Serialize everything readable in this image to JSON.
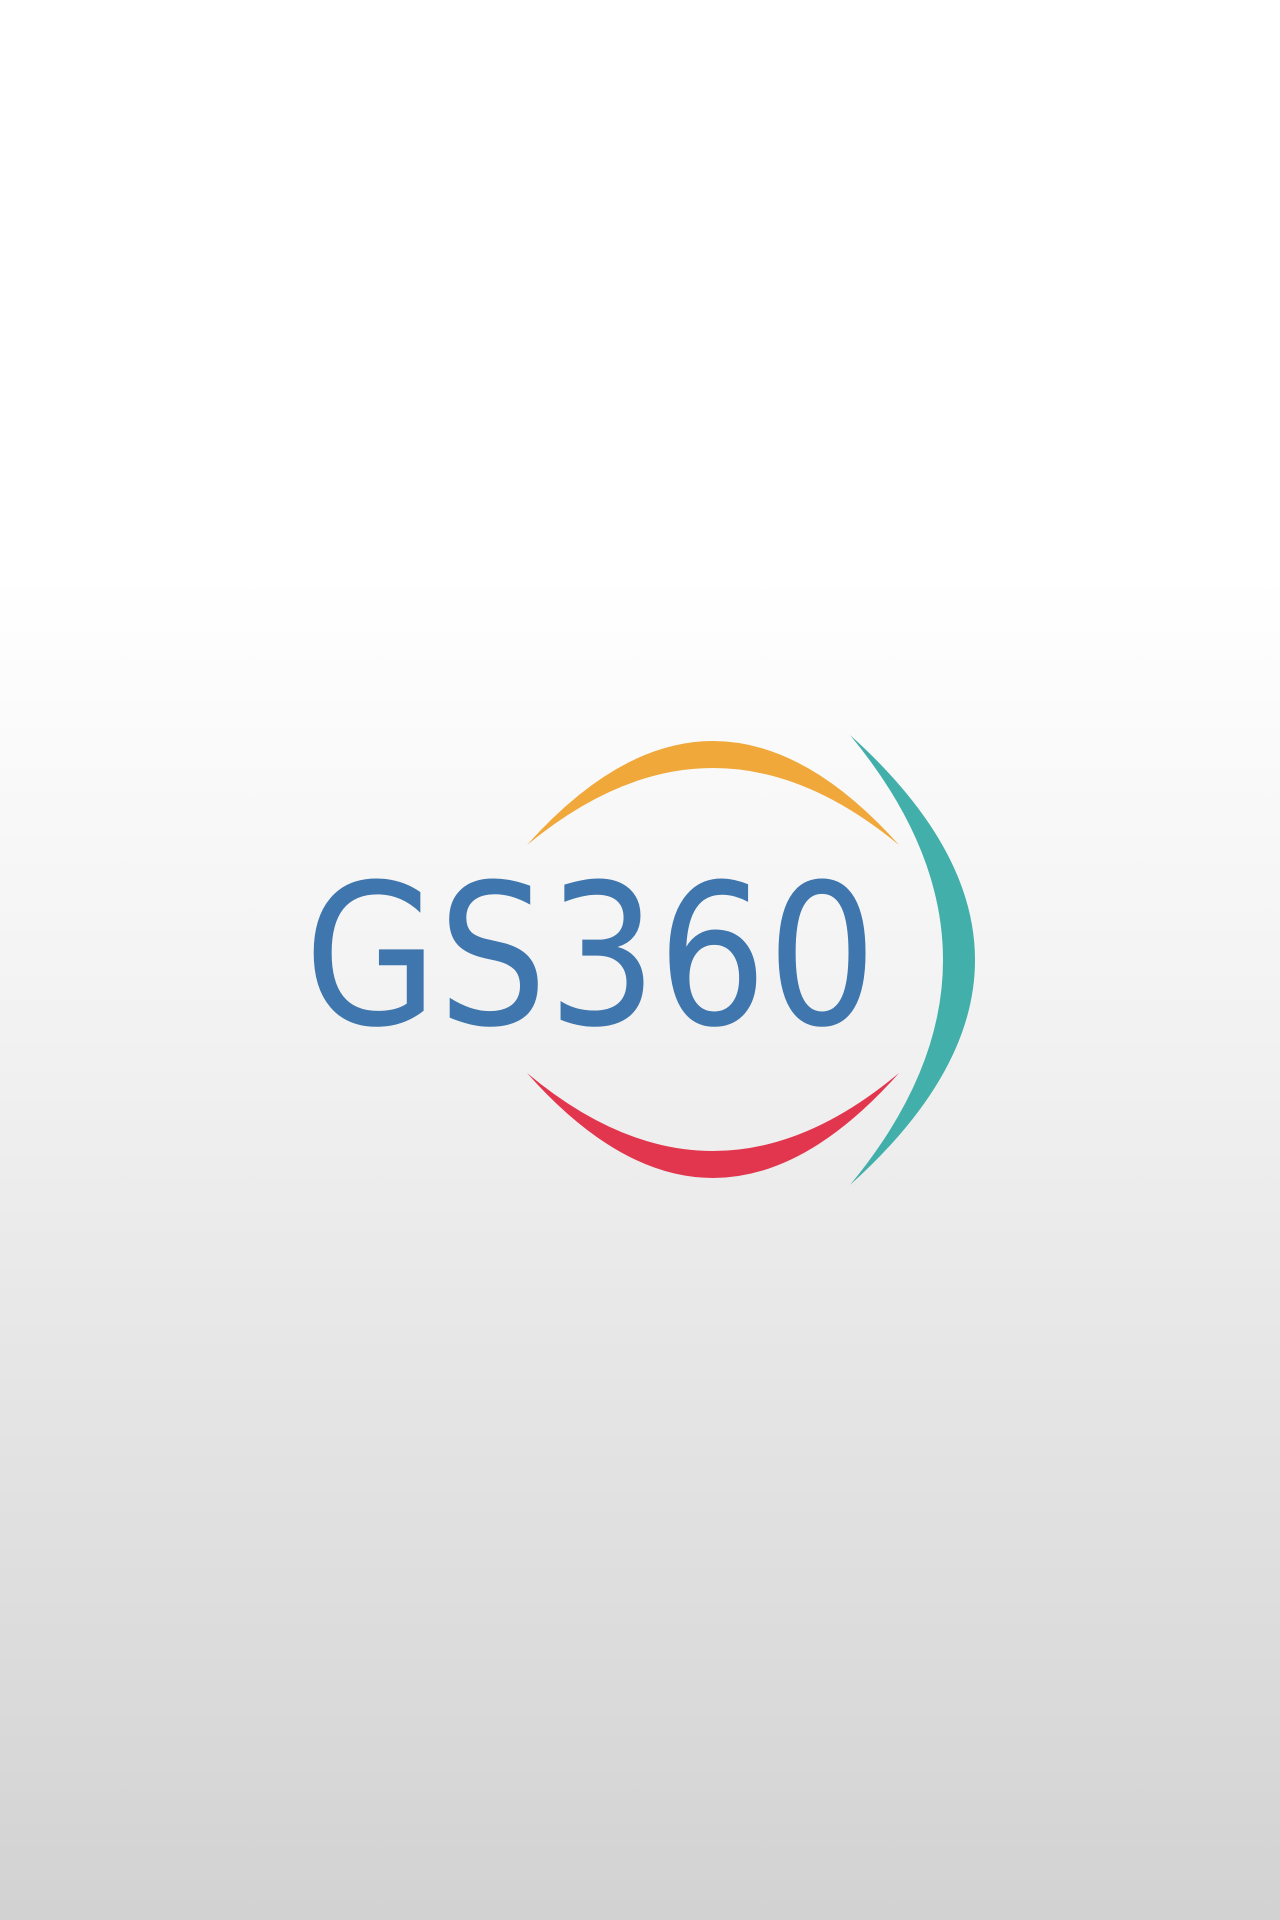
{
  "logo": {
    "text": "GS360"
  }
}
